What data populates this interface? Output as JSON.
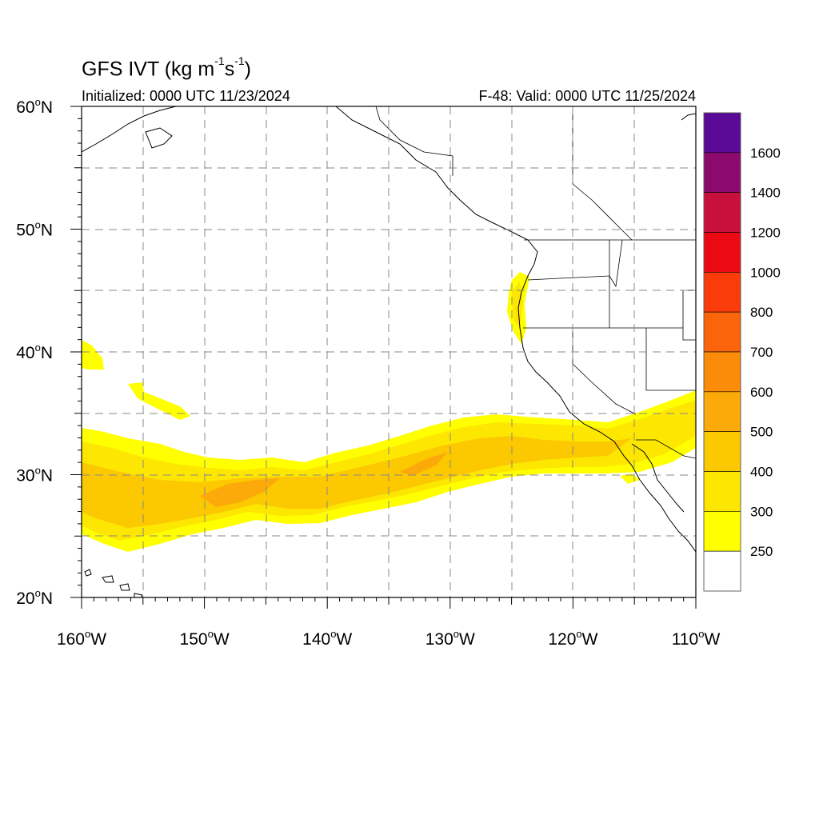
{
  "title": {
    "main": "GFS IVT (kg m",
    "exp1": "-1",
    "mid": "s",
    "exp2": "-1",
    "close": ")"
  },
  "initialized": "Initialized: 0000 UTC 11/23/2024",
  "valid": "F-48: Valid: 0000 UTC 11/25/2024",
  "lat_labels": [
    "60",
    "50",
    "40",
    "30",
    "20"
  ],
  "lat_values": [
    60,
    50,
    40,
    30,
    20
  ],
  "lon_labels": [
    "160",
    "150",
    "140",
    "130",
    "120",
    "110"
  ],
  "lon_values": [
    -160,
    -150,
    -140,
    -130,
    -120,
    -110
  ],
  "lat_suffix": "N",
  "lon_suffix": "W",
  "degree_symbol": "o",
  "map_extent": {
    "lon_min": -160,
    "lon_max": -110,
    "lat_min": 20,
    "lat_max": 60
  },
  "colorbar": {
    "labels": [
      "1600",
      "1400",
      "1200",
      "1000",
      "800",
      "700",
      "600",
      "500",
      "400",
      "300",
      "250"
    ],
    "colors_top_to_bottom": [
      "#5a0a96",
      "#8c0a6e",
      "#c8103c",
      "#eb0a14",
      "#fa3c0a",
      "#fa640a",
      "#fa8c0a",
      "#fbaa0a",
      "#fcc800",
      "#fde600",
      "#ffff00",
      "#ffffff"
    ]
  },
  "colors": {
    "ivt_250": "#ffff00",
    "ivt_300": "#fde600",
    "ivt_400": "#fcc800",
    "ivt_500": "#fbaa0a",
    "ivt_600": "#fa8c0a"
  }
}
